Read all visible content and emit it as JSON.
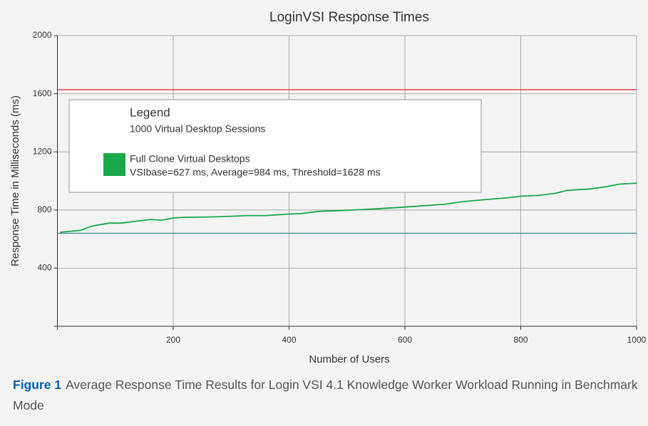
{
  "chart_data": {
    "type": "line",
    "title": "LoginVSI Response Times",
    "x_label": "Number of Users",
    "y_label": "Response Time in Milliseconds (ms)",
    "xlim": [
      0,
      1000
    ],
    "xticks": [
      200,
      400,
      600,
      800,
      1000
    ],
    "ylim": [
      0,
      2000
    ],
    "yticks": [
      400,
      800,
      1200,
      1600,
      2000
    ],
    "grid": true,
    "legend": {
      "title": "Legend",
      "subtitle": "1000 Virtual Desktop Sessions",
      "detail": "VSIbase=627 ms, Average=984 ms, Threshold=1628 ms",
      "position": "upper left"
    },
    "reference_lines": [
      {
        "value": 1628,
        "color": "#e0282e"
      },
      {
        "value": 640,
        "color": "#4a8b97"
      }
    ],
    "series": [
      {
        "name": "Full Clone Virtual Desktops",
        "color": "#1aa84a",
        "x": [
          5,
          40,
          60,
          90,
          110,
          140,
          160,
          180,
          200,
          220,
          260,
          300,
          330,
          360,
          400,
          420,
          450,
          500,
          550,
          600,
          640,
          670,
          700,
          740,
          780,
          800,
          830,
          860,
          880,
          920,
          950,
          970,
          1000
        ],
        "values": [
          647,
          660,
          690,
          710,
          710,
          725,
          735,
          730,
          745,
          750,
          752,
          757,
          762,
          762,
          772,
          775,
          790,
          798,
          808,
          820,
          832,
          840,
          858,
          872,
          885,
          895,
          900,
          915,
          935,
          945,
          962,
          978,
          985
        ]
      }
    ],
    "caption": {
      "label": "Figure 1",
      "text": "Average Response Time Results for Login VSI 4.1 Knowledge Worker Workload Running in Benchmark Mode"
    }
  }
}
